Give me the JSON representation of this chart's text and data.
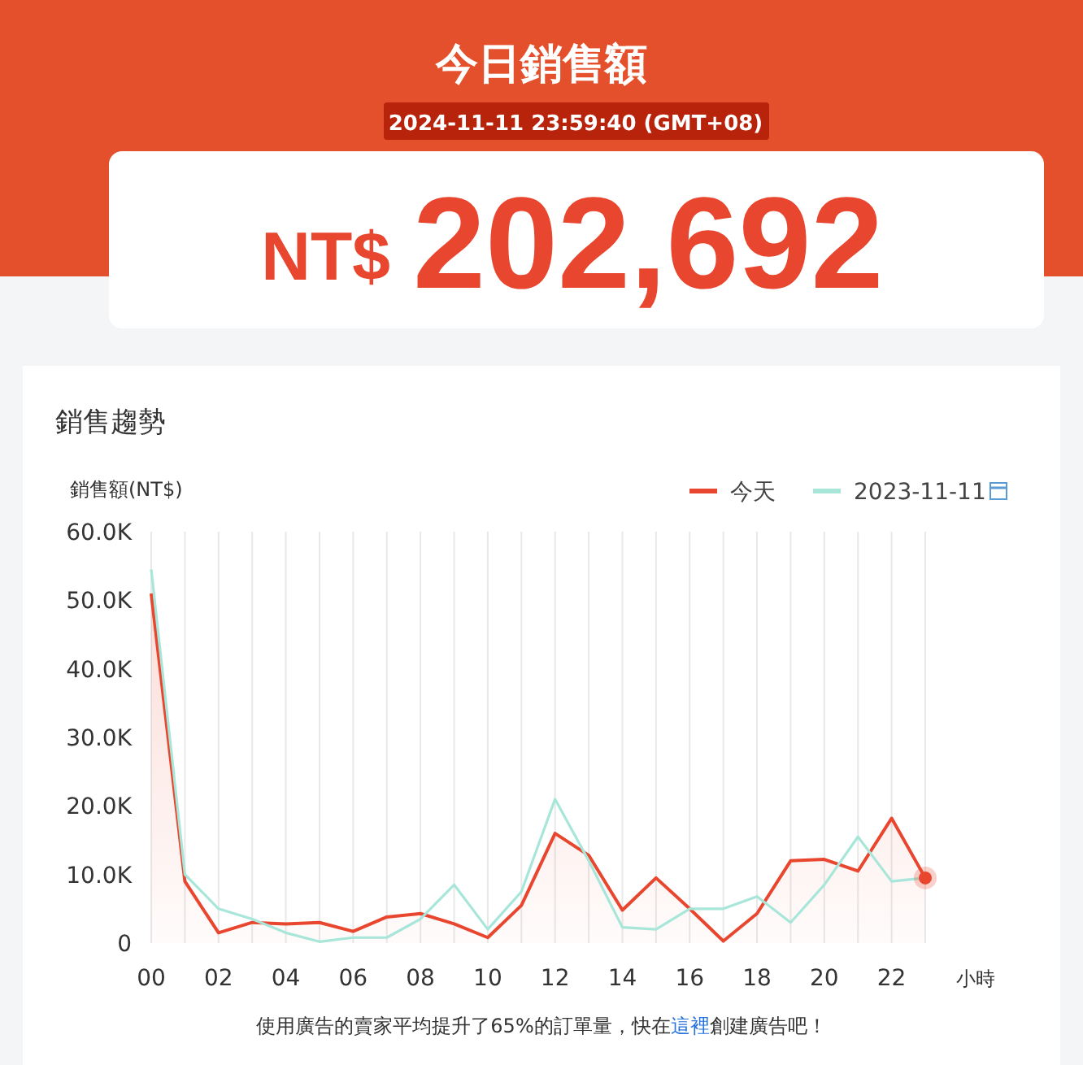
{
  "chart_data": [
    {
      "type": "other",
      "title": "今日銷售額",
      "subtitle": "2024-11-11 23:59:40 (GMT+08)",
      "annotations": [
        "NT$",
        "202,692"
      ]
    },
    {
      "type": "line",
      "title": "銷售趨勢",
      "ylabel": "銷售額(NT$)",
      "xlabel": "小時",
      "categories": [
        "00",
        null,
        "02",
        null,
        "04",
        null,
        "06",
        null,
        "08",
        null,
        "10",
        null,
        "12",
        null,
        "14",
        null,
        "16",
        null,
        "18",
        null,
        "20",
        null,
        "22",
        null
      ],
      "series": [
        {
          "name": "今天",
          "type": "area",
          "color": "#e8462e",
          "values": [
            51,
            9,
            1.5,
            3,
            2.8,
            3,
            1.7,
            3.8,
            4.3,
            2.8,
            0.8,
            5.5,
            16,
            12.8,
            4.8,
            9.5,
            5,
            0.3,
            4.3,
            12,
            12.2,
            10.5,
            18.2,
            9.5
          ]
        },
        {
          "name": "2023-11-11",
          "type": "line",
          "color": "#a8e6da",
          "values": [
            54.5,
            10,
            5,
            3.5,
            1.5,
            0.2,
            0.8,
            0.8,
            3.5,
            8.5,
            2,
            7.5,
            21,
            12,
            2.3,
            2,
            5,
            5,
            6.8,
            3,
            8.5,
            15.5,
            9,
            9.5
          ]
        }
      ],
      "ylim": [
        0,
        60
      ],
      "yticks": [
        0,
        {
          "value": 10,
          "label": "10.0K"
        },
        {
          "value": 20,
          "label": "20.0K"
        },
        {
          "value": 30,
          "label": "30.0K"
        },
        {
          "value": 40,
          "label": "40.0K"
        },
        {
          "value": 50,
          "label": "50.0K"
        },
        {
          "value": 60,
          "label": "60.0K"
        }
      ],
      "grid": "x",
      "legend": "top right",
      "marker": "none",
      "annotations": [
        "使用廣告的賣家平均提升了65%的訂單量，快在這裡創建廣告吧！"
      ]
    }
  ]
}
